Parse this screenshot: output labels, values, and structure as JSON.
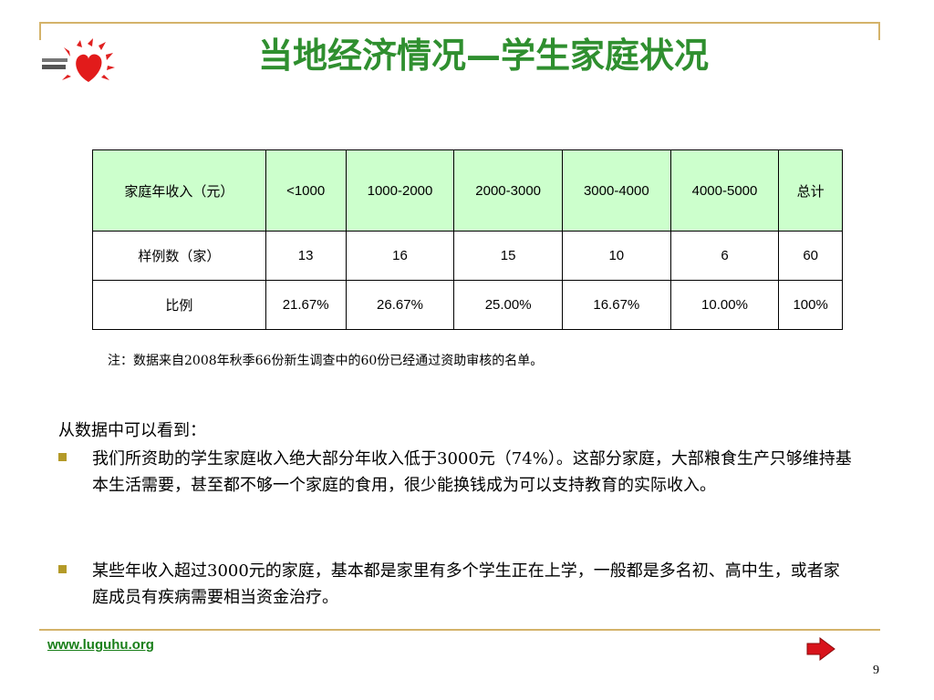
{
  "title": "当地经济情况—学生家庭状况",
  "table": {
    "header": [
      "家庭年收入（元）",
      "<1000",
      "1000-2000",
      "2000-3000",
      "3000-4000",
      "4000-5000",
      "总计"
    ],
    "rows": [
      [
        "样例数（家）",
        "13",
        "16",
        "15",
        "10",
        "6",
        "60"
      ],
      [
        "比例",
        "21.67%",
        "26.67%",
        "25.00%",
        "16.67%",
        "10.00%",
        "100%"
      ]
    ]
  },
  "note": "注：数据来自2008年秋季66份新生调查中的60份已经通过资助审核的名单。",
  "intro": "从数据中可以看到：",
  "bullets": [
    "我们所资助的学生家庭收入绝大部分年收入低于3000元（74%）。这部分家庭，大部粮食生产只够维持基本生活需要，甚至都不够一个家庭的食用，很少能换钱成为可以支持教育的实际收入。",
    "某些年收入超过3000元的家庭，基本都是家里有多个学生正在上学，一般都是多名初、高中生，或者家庭成员有疾病需要相当资金治疗。"
  ],
  "footer": {
    "link": "www.luguhu.org",
    "page_number": "9"
  },
  "colors": {
    "title": "#2f8f2f",
    "table_header_bg": "#ccffcc",
    "accent_line": "#d4b36a",
    "bullet": "#b49a28",
    "link": "#1a7f1a",
    "arrow": "#d8131b"
  },
  "icons": {
    "logo": "sun-heart-logo",
    "next": "next-arrow-icon"
  }
}
